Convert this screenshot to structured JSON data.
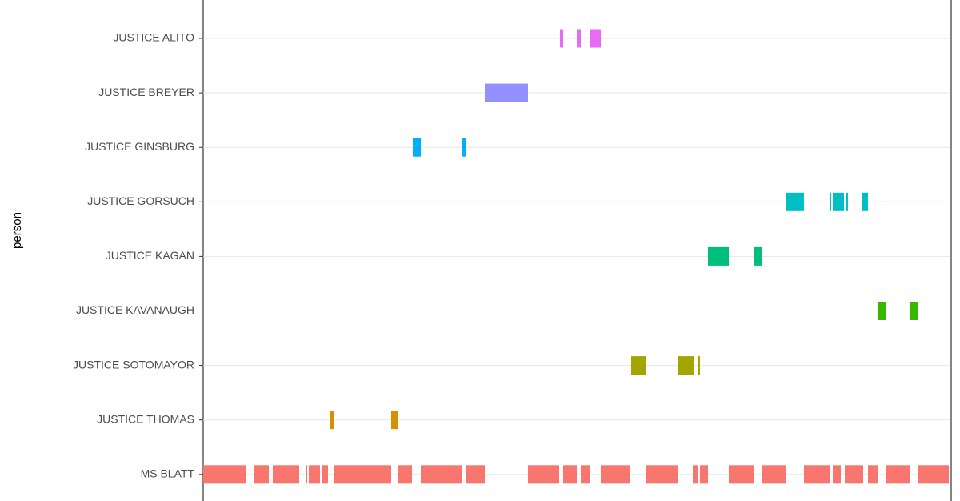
{
  "chart_data": {
    "type": "timeline",
    "y_label": "person",
    "xlim": [
      254,
      1188
    ],
    "grid": true,
    "categories": [
      "JUSTICE ALITO",
      "JUSTICE BREYER",
      "JUSTICE GINSBURG",
      "JUSTICE GORSUCH",
      "JUSTICE KAGAN",
      "JUSTICE KAVANAUGH",
      "JUSTICE SOTOMAYOR",
      "JUSTICE THOMAS",
      "MS BLATT"
    ],
    "series": [
      {
        "name": "JUSTICE ALITO",
        "color": "#e76bf3",
        "segments": [
          [
            700,
            704
          ],
          [
            721,
            726
          ],
          [
            738,
            751
          ]
        ]
      },
      {
        "name": "JUSTICE BREYER",
        "color": "#9590ff",
        "segments": [
          [
            606,
            660
          ]
        ]
      },
      {
        "name": "JUSTICE GINSBURG",
        "color": "#00b0f6",
        "segments": [
          [
            516,
            526
          ],
          [
            577,
            582
          ]
        ]
      },
      {
        "name": "JUSTICE GORSUCH",
        "color": "#00bfc4",
        "segments": [
          [
            983,
            1005
          ],
          [
            1037,
            1039
          ],
          [
            1041,
            1055
          ],
          [
            1057,
            1060
          ],
          [
            1078,
            1085
          ]
        ]
      },
      {
        "name": "JUSTICE KAGAN",
        "color": "#00bf7d",
        "segments": [
          [
            885,
            911
          ],
          [
            943,
            953
          ]
        ]
      },
      {
        "name": "JUSTICE KAVANAUGH",
        "color": "#39b600",
        "segments": [
          [
            1097,
            1108
          ],
          [
            1137,
            1148
          ]
        ]
      },
      {
        "name": "JUSTICE SOTOMAYOR",
        "color": "#a3a500",
        "segments": [
          [
            789,
            808
          ],
          [
            848,
            867
          ],
          [
            873,
            875
          ]
        ]
      },
      {
        "name": "JUSTICE THOMAS",
        "color": "#d89000",
        "segments": [
          [
            412,
            417
          ],
          [
            489,
            498
          ]
        ]
      },
      {
        "name": "MS BLATT",
        "color": "#f8766d",
        "segments": [
          [
            254,
            308
          ],
          [
            318,
            336
          ],
          [
            341,
            374
          ],
          [
            382,
            384
          ],
          [
            386,
            400
          ],
          [
            402,
            410
          ],
          [
            417,
            489
          ],
          [
            498,
            515
          ],
          [
            526,
            577
          ],
          [
            582,
            606
          ],
          [
            660,
            699
          ],
          [
            704,
            721
          ],
          [
            726,
            738
          ],
          [
            751,
            788
          ],
          [
            808,
            848
          ],
          [
            866,
            872
          ],
          [
            875,
            885
          ],
          [
            911,
            943
          ],
          [
            953,
            982
          ],
          [
            1005,
            1038
          ],
          [
            1041,
            1051
          ],
          [
            1056,
            1079
          ],
          [
            1085,
            1097
          ],
          [
            1108,
            1137
          ],
          [
            1148,
            1186
          ]
        ]
      }
    ]
  }
}
